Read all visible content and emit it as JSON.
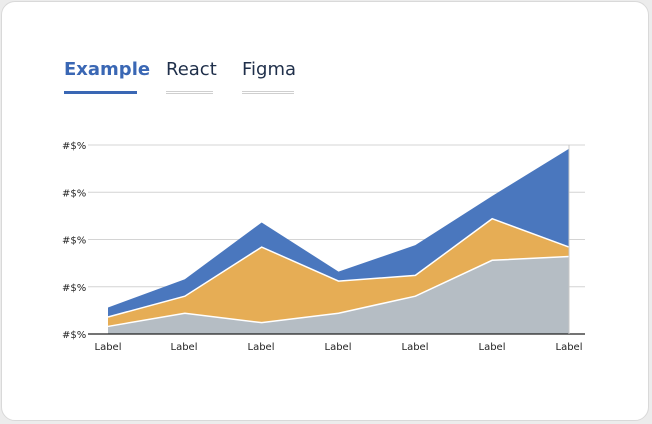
{
  "tabs": [
    {
      "label": "Example",
      "active": true
    },
    {
      "label": "React",
      "active": false
    },
    {
      "label": "Figma",
      "active": false
    }
  ],
  "colors": {
    "accent": "#3a67b4",
    "series_bottom": "#b5bdc4",
    "series_middle": "#e6ad55",
    "series_top": "#4a77be"
  },
  "chart_data": {
    "type": "area",
    "stacked": true,
    "categories": [
      "Label",
      "Label",
      "Label",
      "Label",
      "Label",
      "Label",
      "Label"
    ],
    "y_tick_labels": [
      "#$%",
      "#$%",
      "#$%",
      "#$%",
      "#$%"
    ],
    "ylim": [
      0,
      100
    ],
    "grid": true,
    "series": [
      {
        "color": "#b5bdc4",
        "values": [
          4,
          11,
          6,
          11,
          20,
          39,
          41
        ]
      },
      {
        "color": "#e6ad55",
        "values": [
          5,
          9,
          40,
          17,
          11,
          22,
          5
        ]
      },
      {
        "color": "#4a77be",
        "values": [
          5,
          9,
          13,
          5,
          16,
          12,
          52
        ]
      }
    ]
  }
}
